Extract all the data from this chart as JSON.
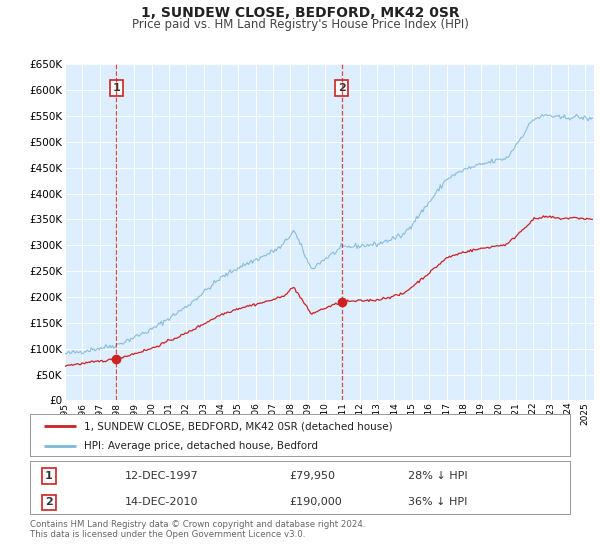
{
  "title": "1, SUNDEW CLOSE, BEDFORD, MK42 0SR",
  "subtitle": "Price paid vs. HM Land Registry's House Price Index (HPI)",
  "ylim": [
    0,
    650000
  ],
  "yticks": [
    0,
    50000,
    100000,
    150000,
    200000,
    250000,
    300000,
    350000,
    400000,
    450000,
    500000,
    550000,
    600000,
    650000
  ],
  "xlim_start": 1995.0,
  "xlim_end": 2025.5,
  "bg_color": "#ddeeff",
  "grid_color": "#ffffff",
  "hpi_color": "#7db8d8",
  "price_color": "#cc2222",
  "vline1_x": 1997.96,
  "vline2_x": 2010.96,
  "sale1_x": 1997.96,
  "sale1_y": 79950,
  "sale2_x": 2010.96,
  "sale2_y": 190000,
  "legend_label_price": "1, SUNDEW CLOSE, BEDFORD, MK42 0SR (detached house)",
  "legend_label_hpi": "HPI: Average price, detached house, Bedford",
  "ann1_date": "12-DEC-1997",
  "ann1_price": "£79,950",
  "ann1_pct": "28% ↓ HPI",
  "ann2_date": "14-DEC-2010",
  "ann2_price": "£190,000",
  "ann2_pct": "36% ↓ HPI",
  "footer": "Contains HM Land Registry data © Crown copyright and database right 2024.\nThis data is licensed under the Open Government Licence v3.0.",
  "title_fontsize": 10,
  "subtitle_fontsize": 8.5
}
